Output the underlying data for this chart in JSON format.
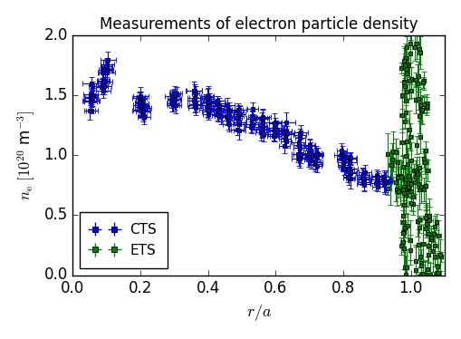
{
  "title": "Measurements of electron particle density",
  "xlabel": "$r/a$",
  "ylabel": "$n_{\\rm e}$ $[10^{20}$ m$^{-3}]$",
  "xlim": [
    0.0,
    1.1
  ],
  "ylim": [
    0.0,
    2.0
  ],
  "cts_color": "blue",
  "ets_color": "green",
  "figsize": [
    5.09,
    3.74
  ],
  "dpi": 100,
  "cts_clusters": [
    {
      "rc": 0.055,
      "nc": 1.47,
      "nspread": 0.13,
      "n": 12
    },
    {
      "rc": 0.09,
      "nc": 1.63,
      "nspread": 0.1,
      "n": 10
    },
    {
      "rc": 0.1,
      "nc": 1.73,
      "nspread": 0.06,
      "n": 8
    },
    {
      "rc": 0.2,
      "nc": 1.47,
      "nspread": 0.1,
      "n": 12
    },
    {
      "rc": 0.21,
      "nc": 1.37,
      "nspread": 0.08,
      "n": 6
    },
    {
      "rc": 0.3,
      "nc": 1.48,
      "nspread": 0.09,
      "n": 10
    },
    {
      "rc": 0.36,
      "nc": 1.48,
      "nspread": 0.09,
      "n": 9
    },
    {
      "rc": 0.4,
      "nc": 1.45,
      "nspread": 0.1,
      "n": 12
    },
    {
      "rc": 0.43,
      "nc": 1.4,
      "nspread": 0.09,
      "n": 10
    },
    {
      "rc": 0.46,
      "nc": 1.35,
      "nspread": 0.08,
      "n": 9
    },
    {
      "rc": 0.49,
      "nc": 1.3,
      "nspread": 0.12,
      "n": 10
    },
    {
      "rc": 0.53,
      "nc": 1.28,
      "nspread": 0.1,
      "n": 8
    },
    {
      "rc": 0.56,
      "nc": 1.25,
      "nspread": 0.12,
      "n": 12
    },
    {
      "rc": 0.6,
      "nc": 1.2,
      "nspread": 0.1,
      "n": 10
    },
    {
      "rc": 0.63,
      "nc": 1.15,
      "nspread": 0.1,
      "n": 9
    },
    {
      "rc": 0.67,
      "nc": 1.08,
      "nspread": 0.12,
      "n": 10
    },
    {
      "rc": 0.7,
      "nc": 1.03,
      "nspread": 0.1,
      "n": 8
    },
    {
      "rc": 0.72,
      "nc": 1.0,
      "nspread": 0.1,
      "n": 9
    },
    {
      "rc": 0.8,
      "nc": 0.93,
      "nspread": 0.1,
      "n": 10
    },
    {
      "rc": 0.82,
      "nc": 0.87,
      "nspread": 0.1,
      "n": 10
    },
    {
      "rc": 0.86,
      "nc": 0.82,
      "nspread": 0.08,
      "n": 9
    },
    {
      "rc": 0.9,
      "nc": 0.8,
      "nspread": 0.06,
      "n": 6
    },
    {
      "rc": 0.92,
      "nc": 0.78,
      "nspread": 0.05,
      "n": 5
    }
  ]
}
